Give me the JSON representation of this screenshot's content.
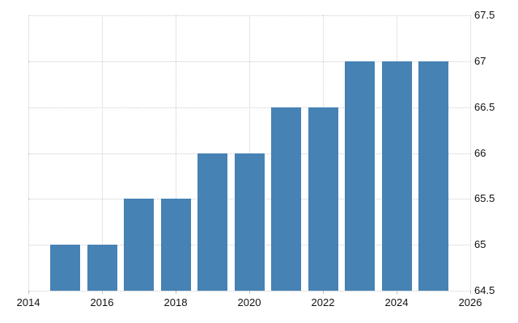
{
  "chart_data": {
    "type": "bar",
    "x": [
      2015,
      2016,
      2017,
      2018,
      2019,
      2020,
      2021,
      2022,
      2023,
      2024,
      2025
    ],
    "values": [
      65,
      65,
      65.5,
      65.5,
      66,
      66,
      66.5,
      66.5,
      67,
      67,
      67
    ],
    "title": "",
    "xlabel": "",
    "ylabel": "",
    "xlim": [
      2014,
      2026
    ],
    "ylim": [
      64.5,
      67.5
    ],
    "x_ticks": [
      2014,
      2016,
      2018,
      2020,
      2022,
      2024,
      2026
    ],
    "y_ticks": [
      64.5,
      65,
      65.5,
      66,
      66.5,
      67,
      67.5
    ],
    "grid": true,
    "grid_style": "dotted",
    "y_axis_position": "right",
    "legend": "none",
    "colors": {
      "bar": "#4682b4",
      "grid": "#cccccc",
      "tick": "#c0c0c0",
      "label": "#111111",
      "background": "#ffffff"
    }
  }
}
